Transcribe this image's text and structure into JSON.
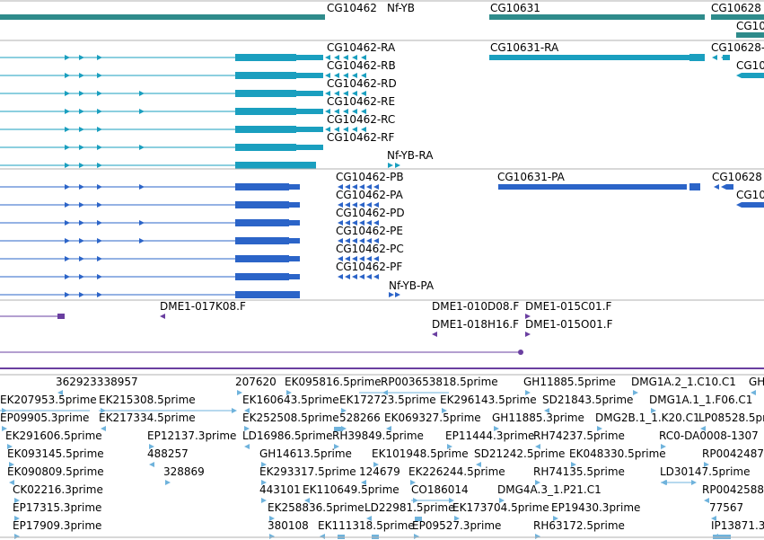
{
  "colors": {
    "gene": "#2e8b8b",
    "transcript_flybase": "#1a9fbf",
    "transcript_refseq": "#2b64c8",
    "clone": "#6a3fa0",
    "est": "#6fb3dc",
    "separator": "#b0b0b0",
    "label": "#000000"
  },
  "tracks": {
    "genes": {
      "labels": [
        "CG10462",
        "Nf-YB",
        "CG10631",
        "CG10628",
        "CG10"
      ]
    },
    "transcripts_a": {
      "labels": [
        "CG10462-RA",
        "CG10462-RB",
        "CG10462-RD",
        "CG10462-RE",
        "CG10462-RC",
        "CG10462-RF",
        "Nf-YB-RA",
        "CG10631-RA",
        "CG10628-",
        "CG10"
      ]
    },
    "transcripts_b": {
      "labels": [
        "CG10462-PB",
        "CG10462-PA",
        "CG10462-PD",
        "CG10462-PE",
        "CG10462-PC",
        "CG10462-PF",
        "Nf-YB-PA",
        "CG10631-PA",
        "CG10628",
        "CG10"
      ]
    },
    "clones": {
      "labels": [
        "DME1-017K08.F",
        "DME1-010D08.F",
        "DME1-015C01.F",
        "DME1-018H16.F",
        "DME1-015O01.F"
      ]
    },
    "ests": {
      "labels": [
        "362923338957",
        "207620",
        "EK095816.5prime",
        "RP003653818.5prime",
        "GH11885.5prime",
        "DMG1A.2_1.C10.C1",
        "GH",
        "EK207953.5prime",
        "EK215308.5prime",
        "EK160643.5prime",
        "EK172723.5prime",
        "EK296143.5prime",
        "SD21843.5prime",
        "DMG1A.1_1.F06.C1",
        "EP09905.3prime",
        "EK217334.5prime",
        "EK252508.5prime",
        "528266",
        "EK069327.5prime",
        "GH11885.3prime",
        "DMG2B.1_1.K20.C1",
        "LP08528.5pri",
        "EK291606.5prime",
        "EP12137.3prime",
        "LD16986.5prime",
        "RH39849.5prime",
        "EP11444.3prime",
        "RH74237.5prime",
        "RC0-DA0008-1307",
        "EK093145.5prime",
        "488257",
        "GH14613.5prime",
        "EK101948.5prime",
        "SD21242.5prime",
        "EK048330.5prime",
        "RP0042487",
        "EK090809.5prime",
        "328869",
        "EK293317.5prime",
        "124679",
        "EK226244.5prime",
        "RH74135.5prime",
        "LD30147.5prime",
        "CK02216.3prime",
        "443101",
        "EK110649.5prime",
        "CO186014",
        "DMG4A.3_1.P21.C1",
        "RP0042588",
        "EP17315.3prime",
        "EK258836.5prime",
        "LD22981.5prime",
        "EK173704.5prime",
        "EP19430.3prime",
        "77567",
        "EP17909.3prime",
        "380108",
        "EK111318.5prime",
        "EP09527.3prime",
        "RH63172.5prime",
        "IP13871.3"
      ]
    }
  }
}
